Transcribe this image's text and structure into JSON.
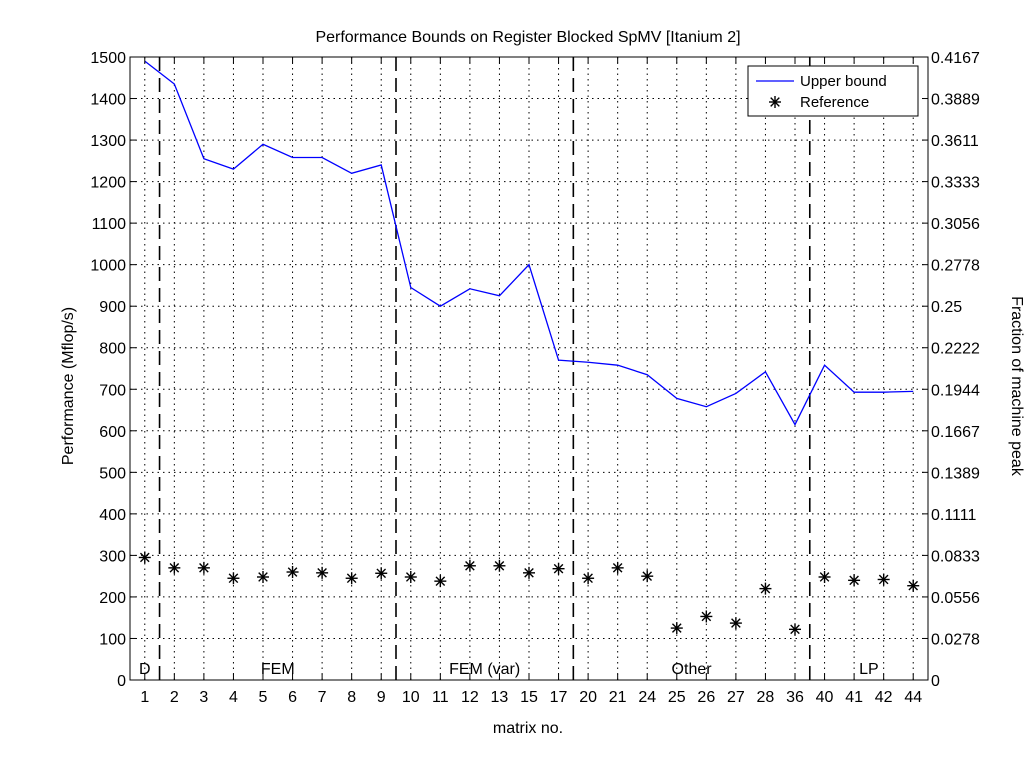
{
  "chart_data": {
    "type": "line",
    "title": "Performance Bounds on Register Blocked SpMV [Itanium 2]",
    "xlabel": "matrix no.",
    "ylabel": "Performance (Mflop/s)",
    "y2label": "Fraction of machine peak",
    "ylim": [
      0,
      1500
    ],
    "yticks": [
      0,
      100,
      200,
      300,
      400,
      500,
      600,
      700,
      800,
      900,
      1000,
      1100,
      1200,
      1300,
      1400,
      1500
    ],
    "y2ticks": [
      "0",
      "0.0278",
      "0.0556",
      "0.0833",
      "0.1111",
      "0.1389",
      "0.1667",
      "0.1944",
      "0.2222",
      "0.25",
      "0.2778",
      "0.3056",
      "0.3333",
      "0.3611",
      "0.3889",
      "0.4167"
    ],
    "categories": [
      "1",
      "2",
      "3",
      "4",
      "5",
      "6",
      "7",
      "8",
      "9",
      "10",
      "11",
      "12",
      "13",
      "15",
      "17",
      "20",
      "21",
      "24",
      "25",
      "26",
      "27",
      "28",
      "36",
      "40",
      "41",
      "42",
      "44"
    ],
    "grid": true,
    "legend_position": "top-right",
    "series": [
      {
        "name": "Upper bound",
        "style": "line",
        "color": "#0000ff",
        "values": [
          1490,
          1435,
          1255,
          1230,
          1290,
          1258,
          1258,
          1220,
          1240,
          945,
          900,
          942,
          925,
          1000,
          770,
          765,
          758,
          735,
          678,
          658,
          690,
          742,
          615,
          758,
          693,
          693,
          695
        ]
      },
      {
        "name": "Reference",
        "style": "markers",
        "marker": "*",
        "color": "#000000",
        "values": [
          295,
          270,
          270,
          245,
          248,
          260,
          258,
          245,
          257,
          248,
          238,
          275,
          275,
          258,
          268,
          245,
          270,
          250,
          125,
          153,
          137,
          220,
          122,
          248,
          240,
          242,
          227
        ]
      }
    ],
    "region_dividers_after_index": [
      0,
      8,
      14,
      22
    ],
    "regions": [
      {
        "label": "D",
        "start_index": 0,
        "end_index": 0
      },
      {
        "label": "FEM",
        "start_index": 1,
        "end_index": 8
      },
      {
        "label": "FEM (var)",
        "start_index": 9,
        "end_index": 14
      },
      {
        "label": "Other",
        "start_index": 15,
        "end_index": 22
      },
      {
        "label": "LP",
        "start_index": 23,
        "end_index": 26
      }
    ]
  }
}
